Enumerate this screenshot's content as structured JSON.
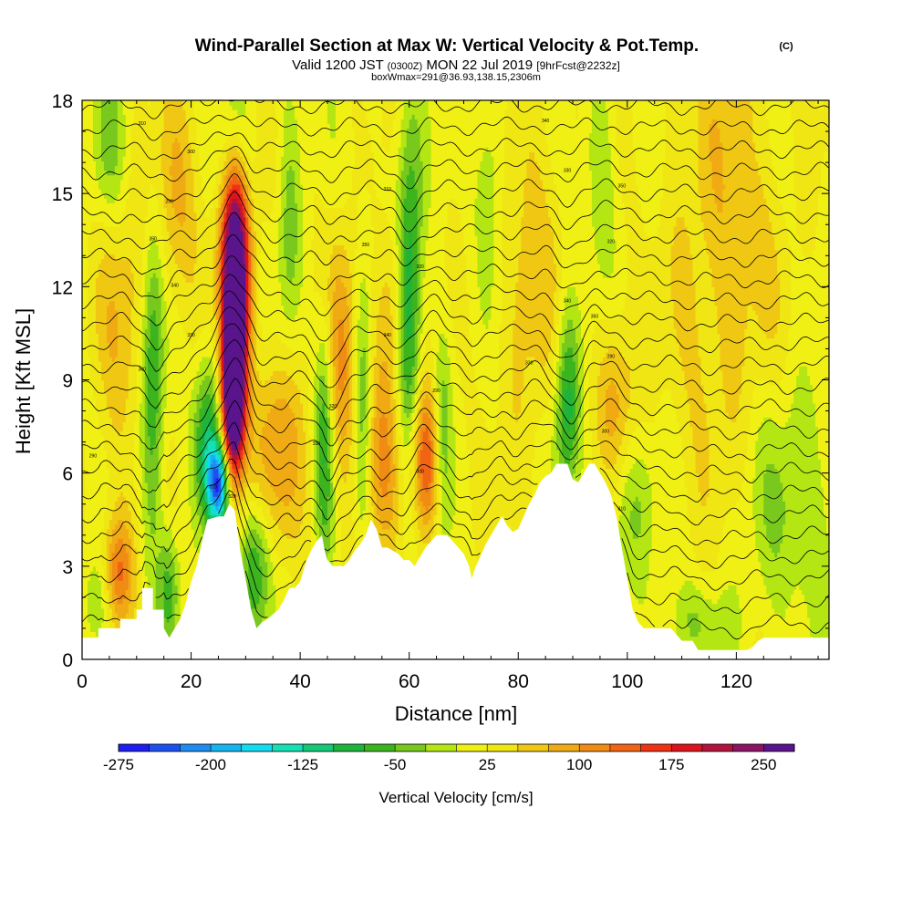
{
  "title": "Wind-Parallel Section at Max W: Vertical Velocity & Pot.Temp.",
  "title_mark": "(C)",
  "subtitle": {
    "valid_prefix": "Valid 1200 JST",
    "utc": "(0300Z)",
    "date": "MON 22 Jul 2019",
    "forecast": "[9hrFcst@2232z]"
  },
  "subtitle2": "boxWmax=291@36.93,138.15,2306m",
  "chart_data": {
    "type": "heatmap",
    "xlabel": "Distance [nm]",
    "ylabel": "Height [Kft MSL]",
    "xlim": [
      0,
      137
    ],
    "ylim": [
      0,
      18
    ],
    "x_ticks": [
      0,
      20,
      40,
      60,
      80,
      100,
      120
    ],
    "y_ticks": [
      0,
      3,
      6,
      9,
      12,
      15,
      18
    ],
    "colorbar": {
      "label": "Vertical Velocity [cm/s]",
      "tick_labels": [
        "-275",
        "-200",
        "-125",
        "-50",
        "25",
        "100",
        "175",
        "250"
      ],
      "tick_values": [
        -275,
        -200,
        -125,
        -50,
        25,
        100,
        175,
        250
      ],
      "colors": [
        "#1e1ef0",
        "#1e50f0",
        "#1e8cf0",
        "#14b4f0",
        "#14dcf0",
        "#14e0b4",
        "#14c878",
        "#1eb43c",
        "#3cb41e",
        "#78c81e",
        "#b4e614",
        "#f0f014",
        "#f0e614",
        "#f0c814",
        "#f0aa14",
        "#f08c14",
        "#f06414",
        "#f03214",
        "#dc141e",
        "#b4143c",
        "#8c1464",
        "#5a148c"
      ],
      "min": -275,
      "max": 287.5,
      "step": 25
    },
    "terrain": [
      [
        0,
        0.7
      ],
      [
        3,
        0.7
      ],
      [
        3,
        1
      ],
      [
        7,
        1
      ],
      [
        7,
        1.3
      ],
      [
        10,
        1.3
      ],
      [
        10,
        1.6
      ],
      [
        11,
        1.6
      ],
      [
        11,
        2.3
      ],
      [
        13,
        2.3
      ],
      [
        13,
        1.6
      ],
      [
        15,
        1.6
      ],
      [
        15,
        1
      ],
      [
        16,
        0.7
      ],
      [
        17,
        1
      ],
      [
        18,
        1.3
      ],
      [
        19,
        1.8
      ],
      [
        20,
        2.5
      ],
      [
        21,
        3
      ],
      [
        22,
        3.8
      ],
      [
        23,
        4.5
      ],
      [
        25,
        4.6
      ],
      [
        26,
        4.6
      ],
      [
        27,
        5
      ],
      [
        28,
        4.8
      ],
      [
        29,
        3.5
      ],
      [
        30,
        2.6
      ],
      [
        31,
        1.6
      ],
      [
        32,
        1
      ],
      [
        33,
        1.2
      ],
      [
        34,
        1.3
      ],
      [
        36,
        1.6
      ],
      [
        37,
        1.9
      ],
      [
        38,
        2.3
      ],
      [
        39,
        2.3
      ],
      [
        40,
        2.5
      ],
      [
        41,
        3.1
      ],
      [
        42,
        3.5
      ],
      [
        43,
        3.8
      ],
      [
        44,
        4
      ],
      [
        44.5,
        3.5
      ],
      [
        45,
        3.2
      ],
      [
        46,
        3
      ],
      [
        48,
        3
      ],
      [
        49,
        3.2
      ],
      [
        50,
        3.5
      ],
      [
        51,
        3.7
      ],
      [
        52,
        4
      ],
      [
        53,
        4.5
      ],
      [
        54,
        4.2
      ],
      [
        55,
        3.6
      ],
      [
        56,
        3.6
      ],
      [
        57,
        3.5
      ],
      [
        58,
        3.4
      ],
      [
        59,
        3.2
      ],
      [
        60,
        3.2
      ],
      [
        61,
        3
      ],
      [
        62,
        3.3
      ],
      [
        63,
        3.6
      ],
      [
        64,
        3.8
      ],
      [
        65,
        4
      ],
      [
        67,
        4
      ],
      [
        68,
        3.8
      ],
      [
        69,
        3.6
      ],
      [
        70,
        3.4
      ],
      [
        71,
        3
      ],
      [
        71.5,
        2.6
      ],
      [
        72,
        2.9
      ],
      [
        73,
        3.3
      ],
      [
        74,
        3.7
      ],
      [
        75,
        4
      ],
      [
        76,
        4.3
      ],
      [
        77,
        4.6
      ],
      [
        78,
        4.3
      ],
      [
        79,
        4.1
      ],
      [
        80,
        4.2
      ],
      [
        81,
        4.6
      ],
      [
        82,
        5
      ],
      [
        83,
        5.3
      ],
      [
        84,
        5.7
      ],
      [
        85,
        5.9
      ],
      [
        86,
        6
      ],
      [
        87,
        6.3
      ],
      [
        89,
        6.3
      ],
      [
        90,
        5.8
      ],
      [
        91,
        5.7
      ],
      [
        92,
        6
      ],
      [
        93,
        6.3
      ],
      [
        94,
        6.3
      ],
      [
        95,
        6
      ],
      [
        96,
        5.7
      ],
      [
        97,
        5.3
      ],
      [
        98,
        4.6
      ],
      [
        99,
        3.6
      ],
      [
        100,
        2.6
      ],
      [
        101,
        1.6
      ],
      [
        102,
        1.2
      ],
      [
        103,
        1
      ],
      [
        108,
        1
      ],
      [
        109,
        0.8
      ],
      [
        110,
        0.6
      ],
      [
        112,
        0.6
      ],
      [
        113,
        0.3
      ],
      [
        116,
        0.3
      ],
      [
        122,
        0.3
      ],
      [
        123,
        0.4
      ],
      [
        124,
        0.6
      ],
      [
        125,
        0.7
      ],
      [
        137,
        0.7
      ]
    ],
    "updrafts": [
      {
        "x": 28,
        "z": 11,
        "sx": 1.6,
        "sz": 3.2,
        "w": 320
      },
      {
        "x": 27.5,
        "z": 8.3,
        "sx": 1.3,
        "sz": 1.6,
        "w": 200
      },
      {
        "x": 28.5,
        "z": 13,
        "sx": 2.2,
        "sz": 1.8,
        "w": 90
      },
      {
        "x": 6.5,
        "z": 2.8,
        "sx": 2,
        "sz": 1.3,
        "w": 110
      },
      {
        "x": 63,
        "z": 6.4,
        "sx": 2.2,
        "sz": 1.7,
        "w": 140
      },
      {
        "x": 47.5,
        "z": 9.5,
        "sx": 2.6,
        "sz": 2.8,
        "w": 85
      },
      {
        "x": 36,
        "z": 6.8,
        "sx": 3.5,
        "sz": 2.4,
        "w": 75
      },
      {
        "x": 55,
        "z": 6.5,
        "sx": 2.3,
        "sz": 2.4,
        "w": 70
      },
      {
        "x": 57,
        "z": 11.5,
        "sx": 2.2,
        "sz": 2,
        "w": 60
      },
      {
        "x": 98,
        "z": 8.3,
        "sx": 2.6,
        "sz": 2,
        "w": 65
      },
      {
        "x": 17,
        "z": 14.5,
        "sx": 3.2,
        "sz": 2.5,
        "w": 55
      },
      {
        "x": 82,
        "z": 12.5,
        "sx": 4,
        "sz": 4,
        "w": 45
      },
      {
        "x": 118,
        "z": 11.5,
        "sx": 7,
        "sz": 7,
        "w": 50
      },
      {
        "x": 7,
        "z": 11,
        "sx": 3.5,
        "sz": 4,
        "w": 45
      }
    ],
    "downdrafts": [
      {
        "x": 25,
        "z": 5.6,
        "sx": 1.4,
        "sz": 0.9,
        "w": -230
      },
      {
        "x": 23,
        "z": 7,
        "sx": 1.8,
        "sz": 1.8,
        "w": -120
      },
      {
        "x": 13,
        "z": 9,
        "sx": 1.5,
        "sz": 3.8,
        "w": -105
      },
      {
        "x": 32,
        "z": 3,
        "sx": 2.2,
        "sz": 1.6,
        "w": -100
      },
      {
        "x": 44.5,
        "z": 7.5,
        "sx": 1.3,
        "sz": 3,
        "w": -110
      },
      {
        "x": 51.5,
        "z": 8.5,
        "sx": 1.2,
        "sz": 3.2,
        "w": -85
      },
      {
        "x": 60,
        "z": 9.5,
        "sx": 1.5,
        "sz": 3.4,
        "w": -90
      },
      {
        "x": 66,
        "z": 7,
        "sx": 1.2,
        "sz": 2.4,
        "w": -80
      },
      {
        "x": 89,
        "z": 8.3,
        "sx": 1.6,
        "sz": 2.2,
        "w": -110
      },
      {
        "x": 16,
        "z": 2.3,
        "sx": 1.3,
        "sz": 1.4,
        "w": -80
      },
      {
        "x": 100,
        "z": 4.8,
        "sx": 3.5,
        "sz": 1.8,
        "w": -50
      },
      {
        "x": 5,
        "z": 16.5,
        "sx": 2.5,
        "sz": 2.2,
        "w": -55
      },
      {
        "x": 28,
        "z": 17,
        "sx": 2,
        "sz": 1.8,
        "w": -50
      },
      {
        "x": 38,
        "z": 14,
        "sx": 1.5,
        "sz": 3,
        "w": -55
      },
      {
        "x": 60,
        "z": 14.2,
        "sx": 1.8,
        "sz": 3,
        "w": -75
      },
      {
        "x": 75,
        "z": 15.5,
        "sx": 1.8,
        "sz": 2.4,
        "w": -50
      },
      {
        "x": 95,
        "z": 16,
        "sx": 2,
        "sz": 2.4,
        "w": -45
      },
      {
        "x": 128,
        "z": 5,
        "sx": 9,
        "sz": 3.2,
        "w": -50
      },
      {
        "x": 112,
        "z": 1.2,
        "sx": 5,
        "sz": 1,
        "w": -45
      },
      {
        "x": 3,
        "z": 1.8,
        "sx": 2,
        "sz": 1.2,
        "w": -60
      }
    ],
    "background_w": 20,
    "isentropes": {
      "levels_kft": [
        0.8,
        1.6,
        2.4,
        3.1,
        3.8,
        4.5,
        5.2,
        5.9,
        6.6,
        7.3,
        8.0,
        8.7,
        9.4,
        10.1,
        10.8,
        11.5,
        12.2,
        12.9,
        13.6,
        14.3,
        15.0,
        15.7,
        16.4,
        17.1,
        17.8
      ],
      "features": [
        {
          "x": 28,
          "z": 8,
          "amp": 1.5,
          "sx": 2.5,
          "sz": 6
        },
        {
          "x": 13,
          "z": 8,
          "amp": -0.9,
          "sx": 2,
          "sz": 5
        },
        {
          "x": 45,
          "z": 8,
          "amp": -1,
          "sx": 1.8,
          "sz": 4
        },
        {
          "x": 63,
          "z": 7,
          "amp": 0.8,
          "sx": 2.5,
          "sz": 4
        },
        {
          "x": 89,
          "z": 9,
          "amp": -1.1,
          "sx": 2.2,
          "sz": 4
        },
        {
          "x": 60,
          "z": 13,
          "amp": -0.6,
          "sx": 2,
          "sz": 3
        }
      ],
      "contour_labels": [
        "290",
        "300",
        "310",
        "320",
        "330",
        "340",
        "350"
      ]
    }
  }
}
